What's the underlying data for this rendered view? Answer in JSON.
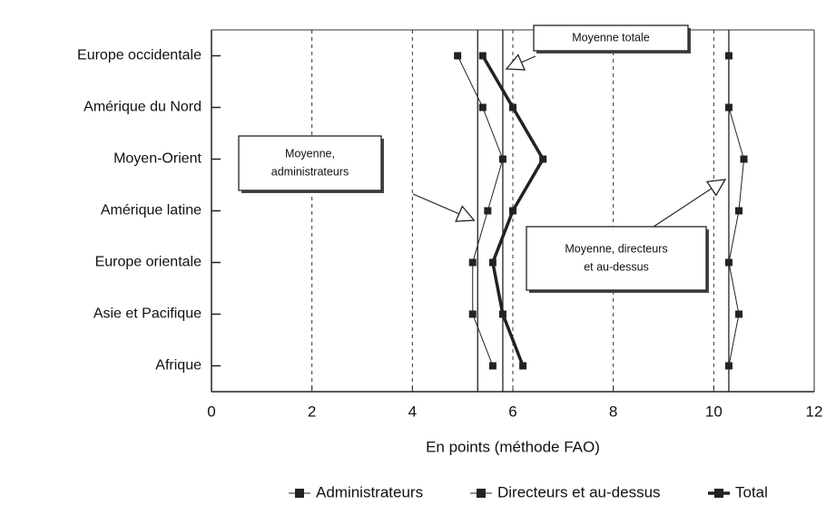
{
  "chart_data": {
    "type": "line",
    "orientation": "horizontal",
    "xlabel": "En points (méthode FAO)",
    "categories": [
      "Europe occidentale",
      "Amérique du Nord",
      "Moyen-Orient",
      "Amérique latine",
      "Europe orientale",
      "Asie et Pacifique",
      "Afrique"
    ],
    "series": [
      {
        "name": "Administrateurs",
        "color": "#222222",
        "width": 1,
        "values": [
          4.9,
          5.4,
          5.8,
          5.5,
          5.2,
          5.2,
          5.6
        ]
      },
      {
        "name": "Directeurs et au-dessus",
        "color": "#222222",
        "width": 1,
        "values": [
          10.3,
          10.3,
          10.6,
          10.5,
          10.3,
          10.5,
          10.3
        ]
      },
      {
        "name": "Total",
        "color": "#222222",
        "width": 3.5,
        "values": [
          5.4,
          6.0,
          6.6,
          6.0,
          5.6,
          5.8,
          6.2
        ]
      }
    ],
    "xlim": [
      0,
      12
    ],
    "xticks": [
      0,
      2,
      4,
      6,
      8,
      10,
      12
    ],
    "grid": true,
    "legend": "bottom",
    "annotations": [
      {
        "lines": [
          "Moyenne totale"
        ],
        "value": 5.8
      },
      {
        "lines": [
          "Moyenne,",
          "administrateurs"
        ],
        "value": 5.3
      },
      {
        "lines": [
          "Moyenne, directeurs",
          "et au-dessus"
        ],
        "value": 10.3
      }
    ]
  }
}
